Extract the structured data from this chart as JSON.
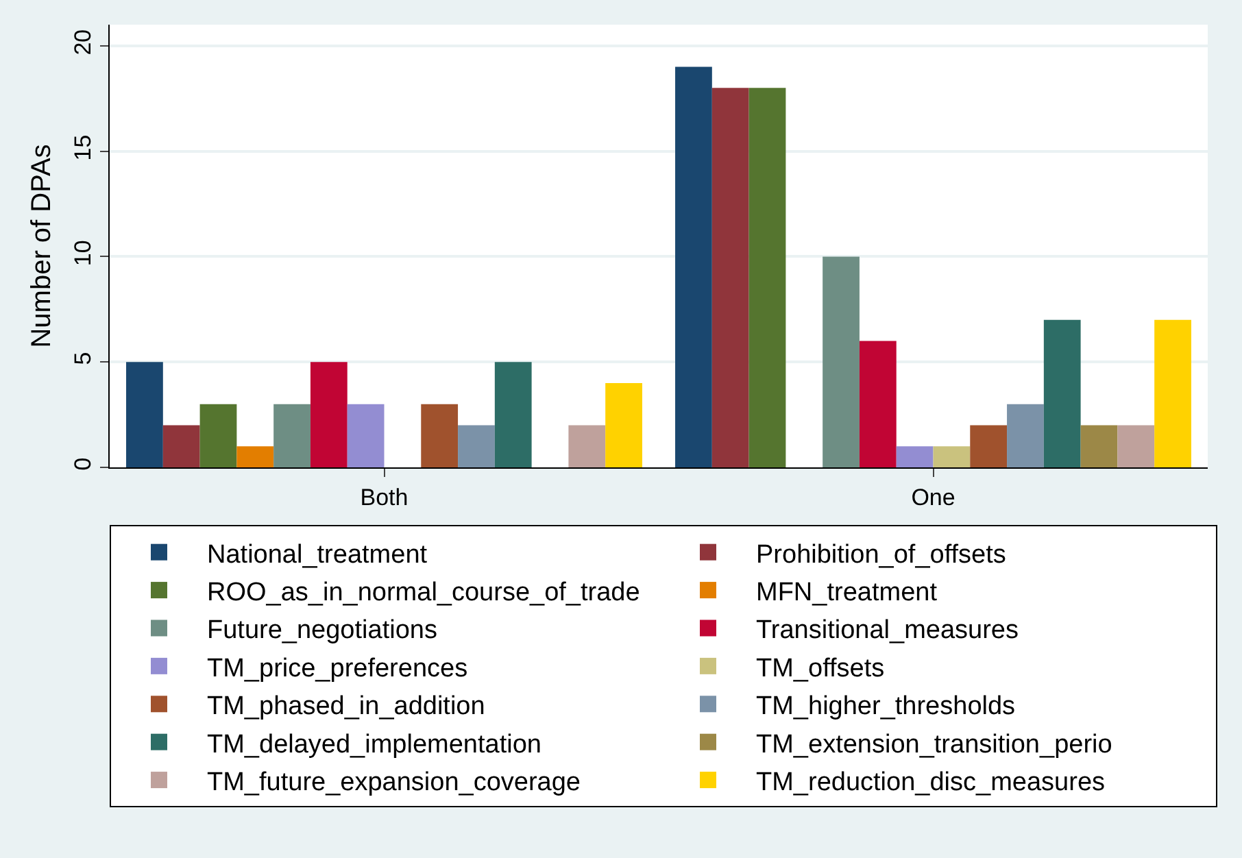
{
  "chart_data": {
    "type": "bar",
    "ylabel": "Number of DPAs",
    "categories": [
      "Both",
      "One"
    ],
    "series": [
      {
        "name": "National_treatment",
        "color": "#1a476f",
        "values": [
          5,
          19
        ]
      },
      {
        "name": "Prohibition_of_offsets",
        "color": "#90353b",
        "values": [
          2,
          18
        ]
      },
      {
        "name": "ROO_as_in_normal_course_of_trade",
        "color": "#55752f",
        "values": [
          3,
          18
        ]
      },
      {
        "name": "MFN_treatment",
        "color": "#e37e00",
        "values": [
          1,
          0
        ]
      },
      {
        "name": "Future_negotiations",
        "color": "#6e8e84",
        "values": [
          3,
          10
        ]
      },
      {
        "name": "Transitional_measures",
        "color": "#c10534",
        "values": [
          5,
          6
        ]
      },
      {
        "name": "TM_price_preferences",
        "color": "#938dd2",
        "values": [
          3,
          1
        ]
      },
      {
        "name": "TM_offsets",
        "color": "#cac27e",
        "values": [
          0,
          1
        ]
      },
      {
        "name": "TM_phased_in_addition",
        "color": "#a0522d",
        "values": [
          3,
          2
        ]
      },
      {
        "name": "TM_higher_thresholds",
        "color": "#7b92a8",
        "values": [
          2,
          3
        ]
      },
      {
        "name": "TM_delayed_implementation",
        "color": "#2d6d66",
        "values": [
          5,
          7
        ]
      },
      {
        "name": "TM_extension_transition_perio",
        "color": "#9c8847",
        "values": [
          0,
          2
        ]
      },
      {
        "name": "TM_future_expansion_coverage",
        "color": "#bfa19c",
        "values": [
          2,
          2
        ]
      },
      {
        "name": "TM_reduction_disc_measures",
        "color": "#ffd200",
        "values": [
          4,
          7
        ]
      }
    ],
    "ylim": [
      0,
      21
    ],
    "yticks": [
      0,
      5,
      10,
      15,
      20
    ],
    "grid": "y",
    "legend": "bottom"
  }
}
